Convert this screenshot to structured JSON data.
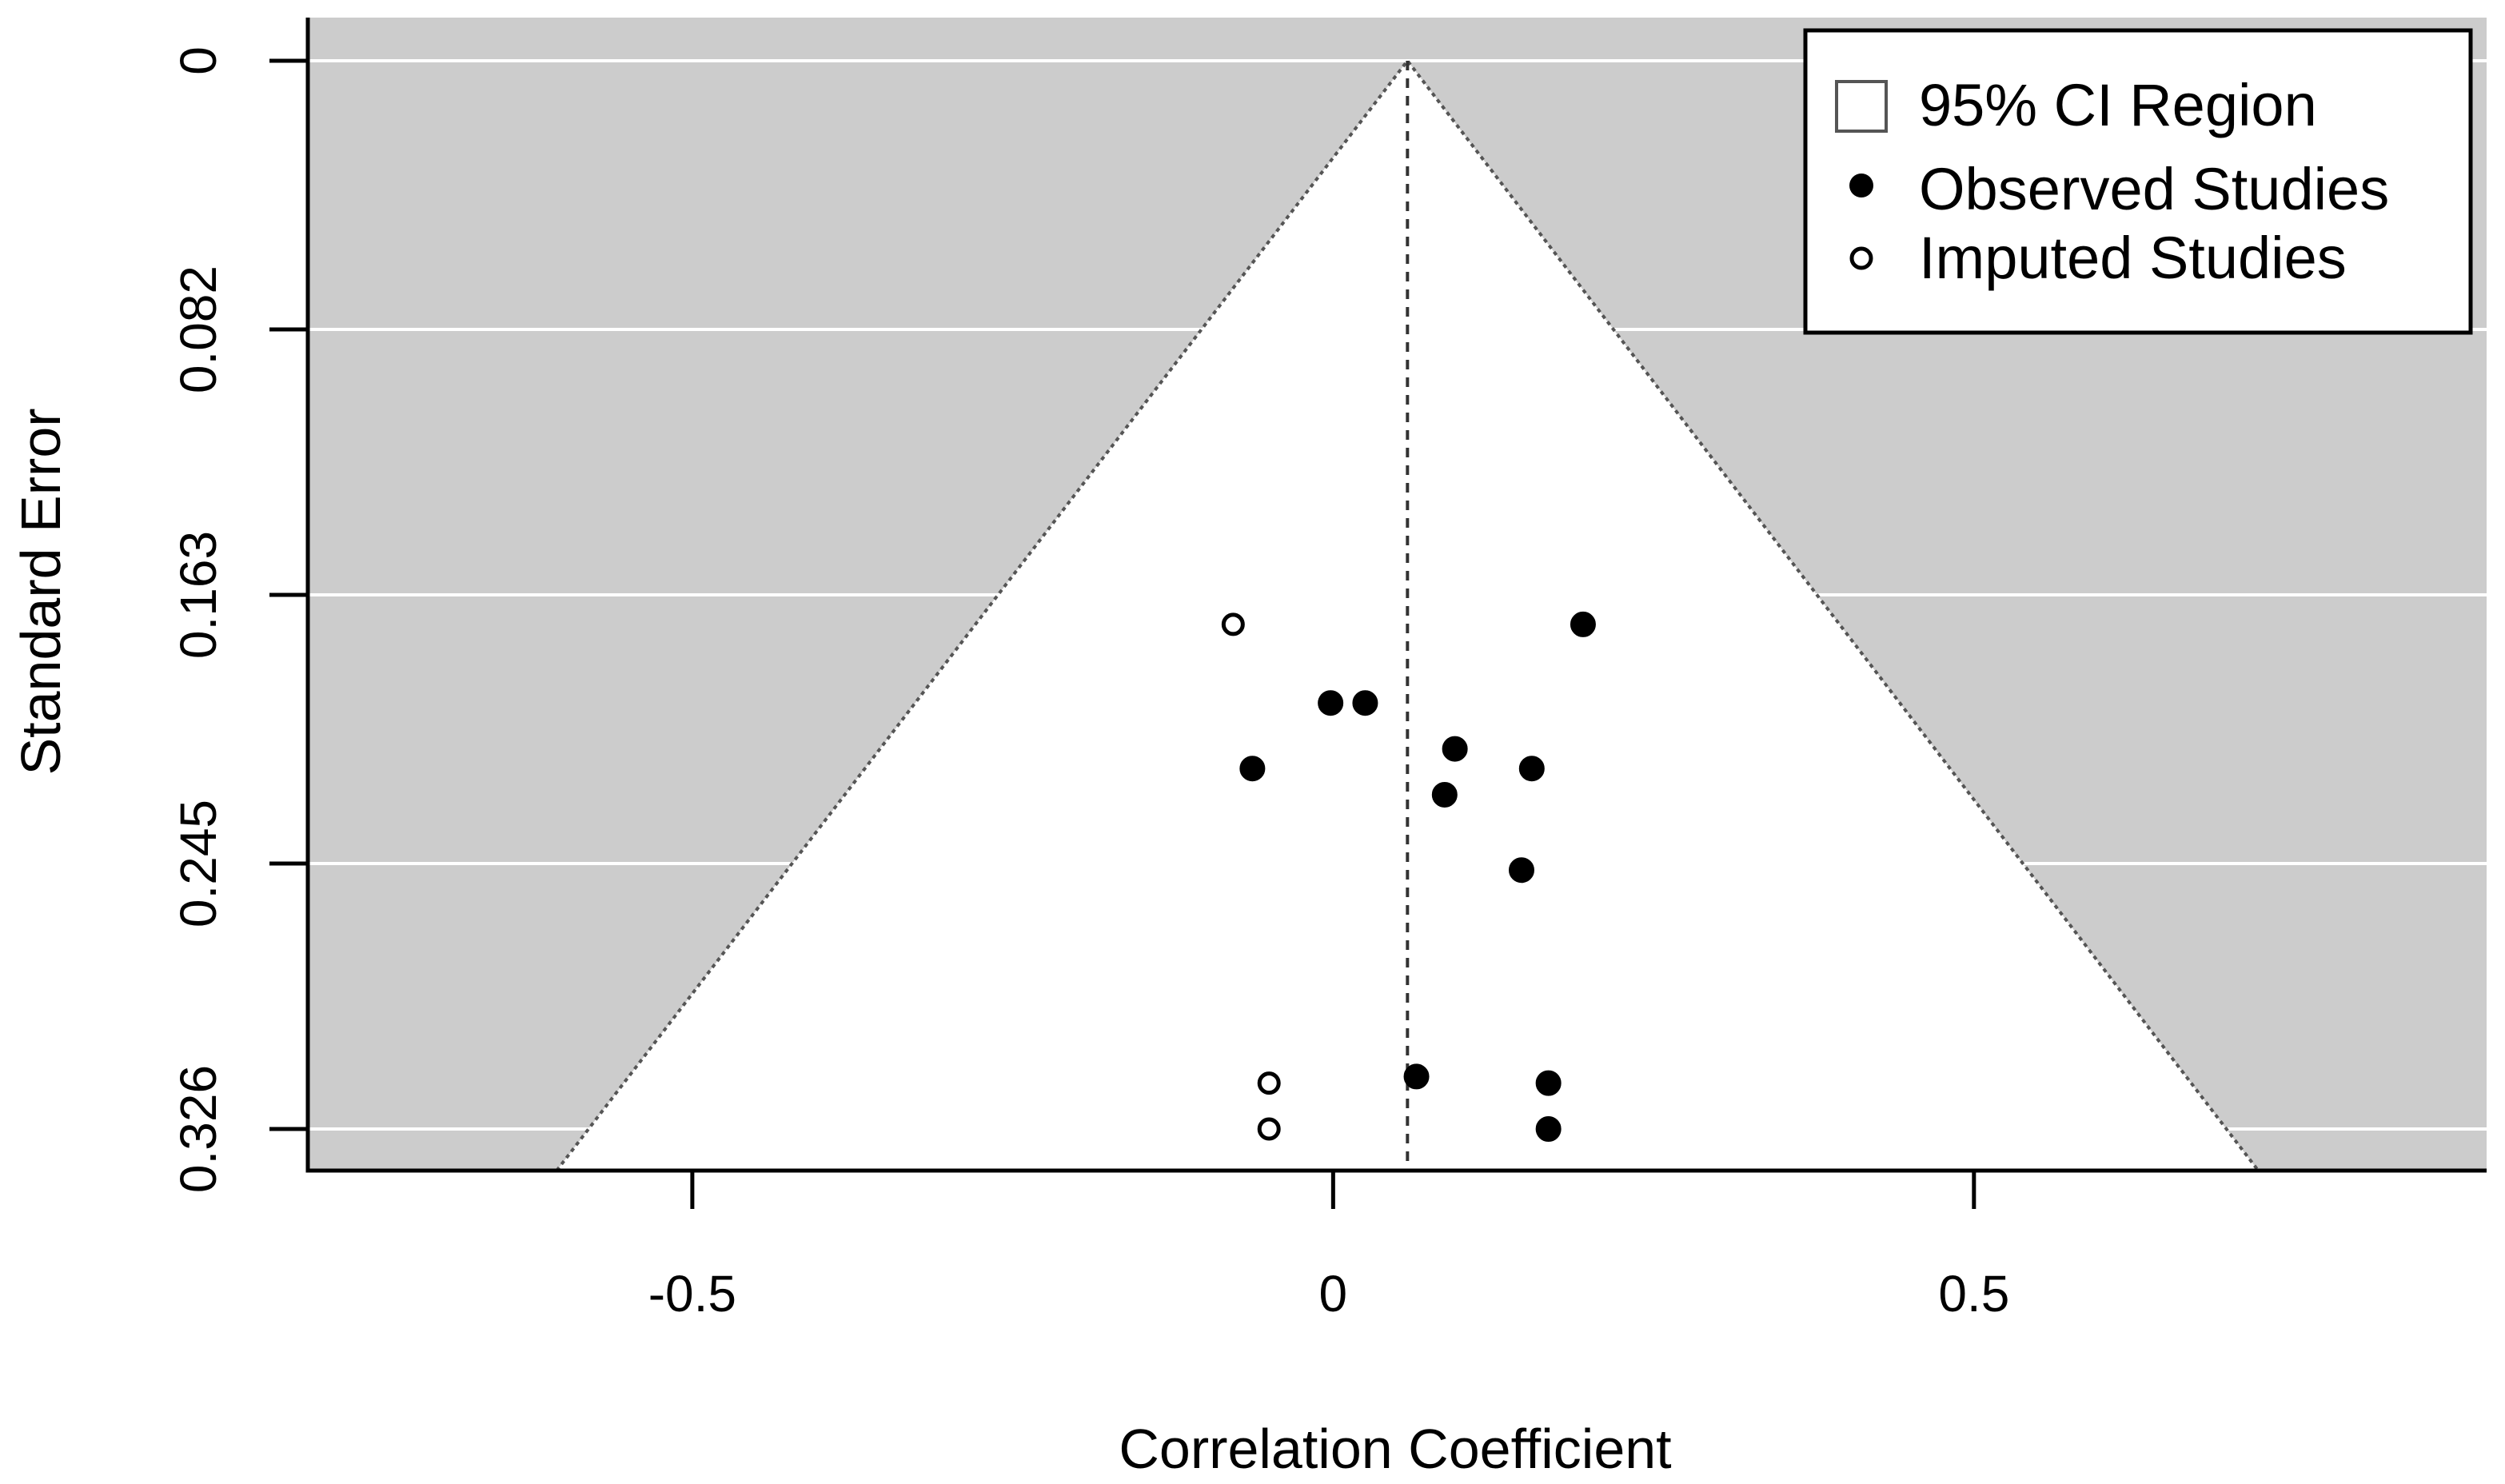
{
  "chart_data": {
    "type": "scatter",
    "subtype": "funnel plot",
    "xlabel": "Correlation Coefficient",
    "ylabel": "Standard Error",
    "xlim": [
      -0.8,
      0.9
    ],
    "ylim": [
      0.0,
      0.338
    ],
    "y_reversed": true,
    "x_ticks": [
      {
        "value": -0.5,
        "label": "-0.5"
      },
      {
        "value": 0,
        "label": "0"
      },
      {
        "value": 0.5,
        "label": "0.5"
      }
    ],
    "y_ticks": [
      {
        "value": 0,
        "label": "0"
      },
      {
        "value": 0.082,
        "label": "0.082"
      },
      {
        "value": 0.163,
        "label": "0.163"
      },
      {
        "value": 0.245,
        "label": "0.245"
      },
      {
        "value": 0.326,
        "label": "0.326"
      }
    ],
    "grid": "horizontal",
    "funnel": {
      "center": 0.058,
      "z": 1.96,
      "outer_color": "#cccccc",
      "inner_color": "#ffffff",
      "line_style": "dotted"
    },
    "legend": {
      "placement": "top-right",
      "entries": [
        "95% CI Region",
        "Observed Studies",
        "Imputed Studies"
      ]
    },
    "series": [
      {
        "name": "Observed Studies",
        "marker": "filled-circle",
        "color": "#000000",
        "points": [
          {
            "x": 0.195,
            "y": 0.172
          },
          {
            "x": -0.002,
            "y": 0.196
          },
          {
            "x": 0.025,
            "y": 0.196
          },
          {
            "x": 0.095,
            "y": 0.21
          },
          {
            "x": -0.063,
            "y": 0.216
          },
          {
            "x": 0.155,
            "y": 0.216
          },
          {
            "x": 0.087,
            "y": 0.224
          },
          {
            "x": 0.147,
            "y": 0.247
          },
          {
            "x": 0.065,
            "y": 0.31
          },
          {
            "x": 0.168,
            "y": 0.312
          },
          {
            "x": 0.168,
            "y": 0.326
          }
        ]
      },
      {
        "name": "Imputed Studies",
        "marker": "open-circle",
        "color": "#000000",
        "points": [
          {
            "x": -0.078,
            "y": 0.172
          },
          {
            "x": -0.05,
            "y": 0.312
          },
          {
            "x": -0.05,
            "y": 0.326
          }
        ]
      }
    ]
  }
}
